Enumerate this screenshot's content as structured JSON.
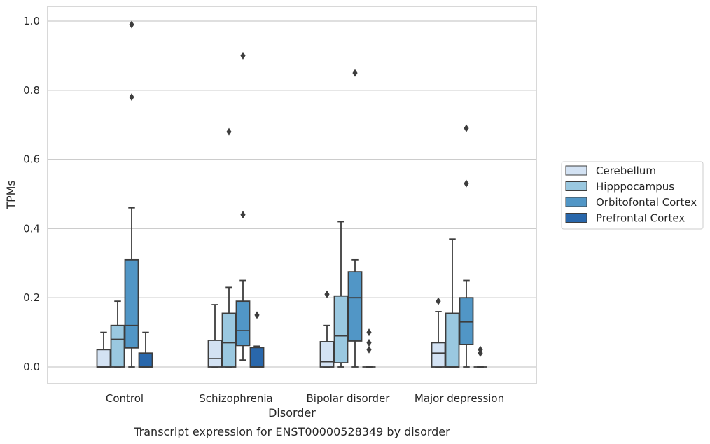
{
  "chart_data": {
    "type": "box",
    "xlabel": "Disorder",
    "ylabel": "TPMs",
    "caption": "Transcript expression for ENST00000528349 by disorder",
    "ylim": [
      -0.048,
      1.04
    ],
    "yticks": [
      0.0,
      0.2,
      0.4,
      0.6,
      0.8,
      1.0
    ],
    "ytick_labels": [
      "0.0",
      "0.2",
      "0.4",
      "0.6",
      "0.8",
      "1.0"
    ],
    "grid": "horizontal",
    "legend_position": "right",
    "categories": [
      "Control",
      "Schizophrenia",
      "Bipolar disorder",
      "Major depression"
    ],
    "series": [
      {
        "name": "Cerebellum",
        "color": "#d3e2f3",
        "boxes": [
          {
            "whislo": 0,
            "q1": 0,
            "med": 0,
            "q3": 0.05,
            "whishi": 0.1,
            "fliers": []
          },
          {
            "whislo": 0,
            "q1": 0,
            "med": 0.024,
            "q3": 0.077,
            "whishi": 0.18,
            "fliers": []
          },
          {
            "whislo": 0,
            "q1": 0,
            "med": 0.015,
            "q3": 0.073,
            "whishi": 0.12,
            "fliers": [
              0.21
            ]
          },
          {
            "whislo": 0,
            "q1": 0,
            "med": 0.04,
            "q3": 0.07,
            "whishi": 0.16,
            "fliers": [
              0.19
            ]
          }
        ]
      },
      {
        "name": "Hipppocampus",
        "color": "#9ac8e0",
        "boxes": [
          {
            "whislo": 0,
            "q1": 0,
            "med": 0.08,
            "q3": 0.12,
            "whishi": 0.19,
            "fliers": []
          },
          {
            "whislo": 0,
            "q1": 0,
            "med": 0.07,
            "q3": 0.155,
            "whishi": 0.23,
            "fliers": [
              0.68
            ]
          },
          {
            "whislo": 0,
            "q1": 0.012,
            "med": 0.09,
            "q3": 0.205,
            "whishi": 0.42,
            "fliers": []
          },
          {
            "whislo": 0,
            "q1": 0,
            "med": 0,
            "q3": 0.155,
            "whishi": 0.37,
            "fliers": []
          }
        ]
      },
      {
        "name": "Orbitofontal Cortex",
        "color": "#5196c6",
        "boxes": [
          {
            "whislo": 0,
            "q1": 0.055,
            "med": 0.12,
            "q3": 0.31,
            "whishi": 0.46,
            "fliers": [
              0.78,
              0.99
            ]
          },
          {
            "whislo": 0.02,
            "q1": 0.062,
            "med": 0.105,
            "q3": 0.19,
            "whishi": 0.25,
            "fliers": [
              0.44,
              0.9
            ]
          },
          {
            "whislo": 0,
            "q1": 0.075,
            "med": 0.2,
            "q3": 0.275,
            "whishi": 0.31,
            "fliers": [
              0.85
            ]
          },
          {
            "whislo": 0,
            "q1": 0.065,
            "med": 0.13,
            "q3": 0.2,
            "whishi": 0.25,
            "fliers": [
              0.53,
              0.69
            ]
          }
        ]
      },
      {
        "name": "Prefrontal Cortex",
        "color": "#2967ab",
        "boxes": [
          {
            "whislo": 0,
            "q1": 0,
            "med": 0,
            "q3": 0.04,
            "whishi": 0.1,
            "fliers": []
          },
          {
            "whislo": 0,
            "q1": 0,
            "med": 0,
            "q3": 0.056,
            "whishi": 0.06,
            "fliers": [
              0.15
            ]
          },
          {
            "whislo": 0,
            "q1": 0,
            "med": 0,
            "q3": 0,
            "whishi": 0,
            "fliers": [
              0.05,
              0.07,
              0.1
            ]
          },
          {
            "whislo": 0,
            "q1": 0,
            "med": 0,
            "q3": 0,
            "whishi": 0,
            "fliers": [
              0.04,
              0.05
            ]
          }
        ]
      }
    ]
  }
}
